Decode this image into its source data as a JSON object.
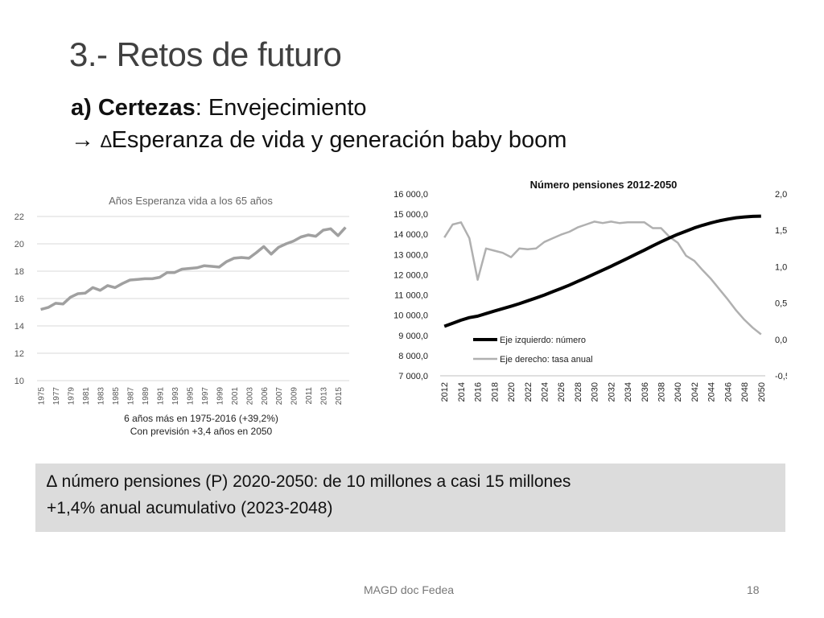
{
  "slide": {
    "title": "3.- Retos de futuro",
    "subtitle_bold": "a) Certezas",
    "subtitle_rest": ": Envejecimiento",
    "subtitle2_arrow": "→",
    "subtitle2_delta": "∆",
    "subtitle2_text": "Esperanza de vida y generación baby boom",
    "left_note_1": "6 años más en 1975-2016 (+39,2%)",
    "left_note_2": "Con previsión +3,4 años en 2050",
    "summary_line_1": "∆ número pensiones (P) 2020-2050: de 10 millones a casi 15 millones",
    "summary_line_2": "+1,4% anual acumulativo (2023-2048)",
    "footer_source": "MAGD doc Fedea",
    "page_number": "18"
  },
  "chart_data": [
    {
      "type": "line",
      "title": "Años Esperanza vida a los 65 años",
      "xlabel": "",
      "ylabel": "",
      "ylim": [
        10,
        22
      ],
      "yticks": [
        "10",
        "12",
        "14",
        "16",
        "18",
        "20",
        "22"
      ],
      "grid": true,
      "categories": [
        "1975",
        "1976",
        "1977",
        "1978",
        "1979",
        "1980",
        "1981",
        "1982",
        "1983",
        "1984",
        "1985",
        "1986",
        "1987",
        "1988",
        "1989",
        "1990",
        "1991",
        "1992",
        "1993",
        "1994",
        "1995",
        "1996",
        "1997",
        "1998",
        "1999",
        "2000",
        "2001",
        "2002",
        "2003",
        "2004",
        "2005",
        "2006",
        "2007",
        "2008",
        "2009",
        "2010",
        "2011",
        "2012",
        "2013",
        "2014",
        "2015",
        "2016"
      ],
      "xtick_labels": [
        "1975",
        "1977",
        "1979",
        "1981",
        "1983",
        "1985",
        "1987",
        "1989",
        "1991",
        "1993",
        "1995",
        "1997",
        "1999",
        "2001",
        "2003",
        "2006",
        "2007",
        "2009",
        "2011",
        "2013",
        "2015"
      ],
      "color": "#a0a0a0",
      "series": [
        {
          "values": [
            15.2,
            15.35,
            15.65,
            15.6,
            16.1,
            16.35,
            16.4,
            16.8,
            16.6,
            16.95,
            16.8,
            17.1,
            17.35,
            17.4,
            17.45,
            17.45,
            17.55,
            17.9,
            17.9,
            18.15,
            18.2,
            18.25,
            18.4,
            18.35,
            18.3,
            18.7,
            18.95,
            19.0,
            18.95,
            19.35,
            19.8,
            19.25,
            19.75,
            20.0,
            20.2,
            20.5,
            20.65,
            20.55,
            21.0,
            21.1,
            20.6,
            21.2
          ]
        }
      ]
    },
    {
      "type": "line",
      "title": "Número pensiones 2012-2050",
      "xlabel": "",
      "ylabel": "",
      "ylim": [
        7000,
        16000
      ],
      "y2lim": [
        -0.5,
        2.0
      ],
      "yticks_left": [
        "7 000,0",
        "8 000,0",
        "9 000,0",
        "10 000,0",
        "11 000,0",
        "12 000,0",
        "13 000,0",
        "14 000,0",
        "15 000,0",
        "16 000,0"
      ],
      "yticks_right": [
        "-0,50",
        "0,00",
        "0,50",
        "1,00",
        "1,50",
        "2,00"
      ],
      "grid": false,
      "legend_position": "bottom-left",
      "categories": [
        "2012",
        "2013",
        "2014",
        "2015",
        "2016",
        "2017",
        "2018",
        "2019",
        "2020",
        "2021",
        "2022",
        "2023",
        "2024",
        "2025",
        "2026",
        "2027",
        "2028",
        "2029",
        "2030",
        "2031",
        "2032",
        "2033",
        "2034",
        "2035",
        "2036",
        "2037",
        "2038",
        "2039",
        "2040",
        "2041",
        "2042",
        "2043",
        "2044",
        "2045",
        "2046",
        "2047",
        "2048",
        "2049",
        "2050"
      ],
      "xtick_labels": [
        "2012",
        "2014",
        "2016",
        "2018",
        "2020",
        "2022",
        "2024",
        "2026",
        "2028",
        "2030",
        "2032",
        "2034",
        "2036",
        "2038",
        "2040",
        "2042",
        "2044",
        "2046",
        "2048",
        "2050"
      ],
      "series": [
        {
          "name": "Eje izquierdo: número",
          "axis": "left",
          "color": "#000000",
          "values": [
            9450,
            9600,
            9750,
            9880,
            9950,
            10080,
            10200,
            10320,
            10440,
            10570,
            10710,
            10850,
            11000,
            11160,
            11320,
            11490,
            11670,
            11850,
            12040,
            12230,
            12420,
            12620,
            12820,
            13020,
            13220,
            13430,
            13630,
            13820,
            14000,
            14160,
            14320,
            14450,
            14570,
            14670,
            14750,
            14820,
            14860,
            14890,
            14900
          ]
        },
        {
          "name": "Eje derecho: tasa anual",
          "axis": "right",
          "color": "#b0b0b0",
          "values": [
            1.4,
            1.58,
            1.61,
            1.39,
            0.82,
            1.25,
            1.22,
            1.19,
            1.13,
            1.25,
            1.24,
            1.25,
            1.34,
            1.39,
            1.44,
            1.48,
            1.54,
            1.58,
            1.62,
            1.6,
            1.62,
            1.6,
            1.61,
            1.61,
            1.61,
            1.53,
            1.53,
            1.41,
            1.33,
            1.15,
            1.08,
            0.95,
            0.83,
            0.69,
            0.55,
            0.4,
            0.27,
            0.16,
            0.07
          ]
        }
      ]
    }
  ]
}
